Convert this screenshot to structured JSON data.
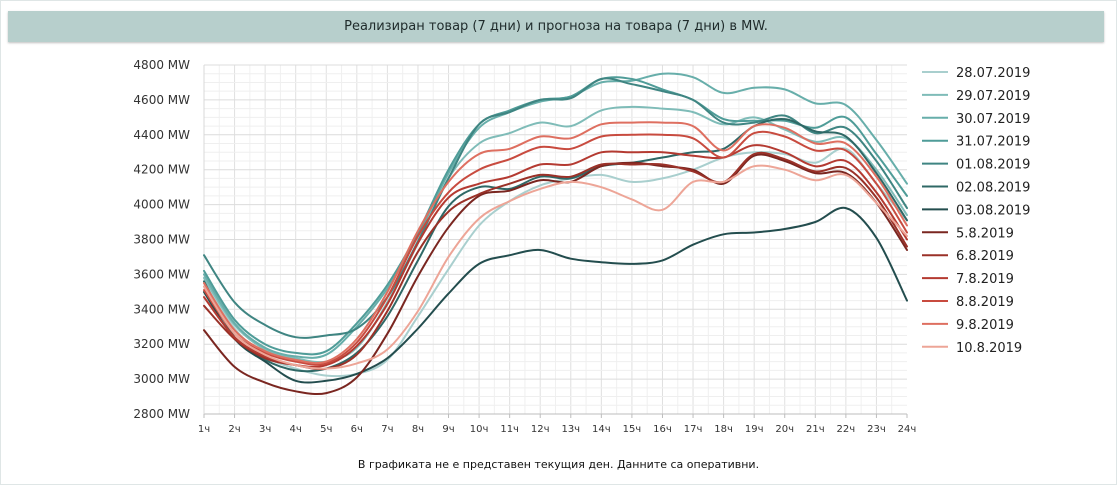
{
  "page": {
    "title": "Реализиран товар (7 дни) и прогноза на товара (7 дни) в MW.",
    "footnote": "В графиката не е представен текущия ден. Данните са оперативни."
  },
  "chart_data": {
    "type": "line",
    "title": "Реализиран товар (7 дни) и прогноза на товара (7 дни) в MW.",
    "xlabel": "",
    "ylabel": "",
    "x": [
      "1ч",
      "2ч",
      "3ч",
      "4ч",
      "5ч",
      "6ч",
      "7ч",
      "8ч",
      "9ч",
      "10ч",
      "11ч",
      "12ч",
      "13ч",
      "14ч",
      "15ч",
      "16ч",
      "17ч",
      "18ч",
      "19ч",
      "20ч",
      "21ч",
      "22ч",
      "23ч",
      "24ч"
    ],
    "ylim": [
      2800,
      4800
    ],
    "yticks": [
      2800,
      3000,
      3200,
      3400,
      3600,
      3800,
      4000,
      4200,
      4400,
      4600,
      4800
    ],
    "ytick_suffix": " MW",
    "grid": true,
    "legend_position": "right",
    "series": [
      {
        "name": "28.07.2019",
        "color": "#a9cfce",
        "values": [
          3560,
          3290,
          3130,
          3060,
          3020,
          3030,
          3110,
          3360,
          3630,
          3880,
          4020,
          4110,
          4150,
          4170,
          4130,
          4150,
          4200,
          4270,
          4300,
          4290,
          4240,
          4320,
          4120,
          3910
        ]
      },
      {
        "name": "29.07.2019",
        "color": "#7fbcb8",
        "values": [
          3580,
          3310,
          3170,
          3120,
          3100,
          3180,
          3440,
          3780,
          4150,
          4350,
          4410,
          4470,
          4450,
          4540,
          4560,
          4550,
          4530,
          4460,
          4500,
          4430,
          4360,
          4380,
          4200,
          3940
        ]
      },
      {
        "name": "30.07.2019",
        "color": "#67aeaa",
        "values": [
          3600,
          3320,
          3180,
          3130,
          3140,
          3300,
          3520,
          3820,
          4180,
          4440,
          4530,
          4590,
          4620,
          4700,
          4710,
          4750,
          4730,
          4640,
          4670,
          4660,
          4580,
          4570,
          4370,
          4120
        ]
      },
      {
        "name": "31.07.2019",
        "color": "#4f9c98",
        "values": [
          3620,
          3340,
          3200,
          3150,
          3160,
          3320,
          3540,
          3840,
          4200,
          4460,
          4540,
          4600,
          4620,
          4720,
          4720,
          4660,
          4600,
          4490,
          4480,
          4480,
          4440,
          4500,
          4290,
          4050
        ]
      },
      {
        "name": "01.08.2019",
        "color": "#3f8582",
        "values": [
          3710,
          3440,
          3310,
          3240,
          3250,
          3290,
          3470,
          3790,
          4150,
          4460,
          4530,
          4600,
          4610,
          4720,
          4690,
          4650,
          4600,
          4470,
          4470,
          4510,
          4410,
          4440,
          4250,
          3980
        ]
      },
      {
        "name": "02.08.2019",
        "color": "#2f6866",
        "values": [
          3560,
          3240,
          3110,
          3050,
          3060,
          3150,
          3360,
          3680,
          3990,
          4100,
          4090,
          4160,
          4150,
          4220,
          4240,
          4270,
          4300,
          4320,
          4450,
          4490,
          4420,
          4390,
          4180,
          3910
        ]
      },
      {
        "name": "03.08.2019",
        "color": "#234d4e",
        "values": [
          3500,
          3230,
          3100,
          2990,
          2990,
          3030,
          3120,
          3290,
          3490,
          3660,
          3710,
          3740,
          3690,
          3670,
          3660,
          3680,
          3770,
          3830,
          3840,
          3860,
          3900,
          3980,
          3810,
          3450
        ]
      },
      {
        "name": "5.8.2019",
        "color": "#7a2620",
        "values": [
          3280,
          3070,
          2980,
          2930,
          2920,
          3010,
          3260,
          3590,
          3870,
          4050,
          4080,
          4140,
          4130,
          4220,
          4240,
          4220,
          4200,
          4120,
          4280,
          4250,
          4180,
          4180,
          4010,
          3740
        ]
      },
      {
        "name": "6.8.2019",
        "color": "#9a3128",
        "values": [
          3420,
          3230,
          3120,
          3080,
          3060,
          3140,
          3390,
          3730,
          3960,
          4060,
          4120,
          4170,
          4160,
          4230,
          4230,
          4230,
          4190,
          4130,
          4290,
          4260,
          4190,
          4210,
          4040,
          3760
        ]
      },
      {
        "name": "7.8.2019",
        "color": "#b43a31",
        "values": [
          3470,
          3240,
          3130,
          3080,
          3080,
          3190,
          3430,
          3780,
          4040,
          4120,
          4160,
          4230,
          4230,
          4300,
          4300,
          4300,
          4280,
          4270,
          4340,
          4300,
          4220,
          4250,
          4070,
          3800
        ]
      },
      {
        "name": "8.8.2019",
        "color": "#c84b3f",
        "values": [
          3510,
          3260,
          3150,
          3100,
          3090,
          3210,
          3470,
          3820,
          4070,
          4200,
          4260,
          4330,
          4320,
          4390,
          4400,
          4400,
          4380,
          4270,
          4410,
          4390,
          4310,
          4310,
          4120,
          3840
        ]
      },
      {
        "name": "9.8.2019",
        "color": "#de6f60",
        "values": [
          3550,
          3280,
          3160,
          3110,
          3100,
          3230,
          3500,
          3850,
          4130,
          4290,
          4320,
          4390,
          4380,
          4460,
          4470,
          4470,
          4450,
          4310,
          4450,
          4440,
          4350,
          4350,
          4160,
          3880
        ]
      },
      {
        "name": "10.8.2019",
        "color": "#eda597",
        "values": [
          3530,
          3260,
          3140,
          3080,
          3060,
          3090,
          3170,
          3390,
          3700,
          3920,
          4020,
          4090,
          4130,
          4100,
          4030,
          3970,
          4130,
          4130,
          4220,
          4200,
          4140,
          4170,
          4010,
          3820
        ]
      }
    ]
  }
}
